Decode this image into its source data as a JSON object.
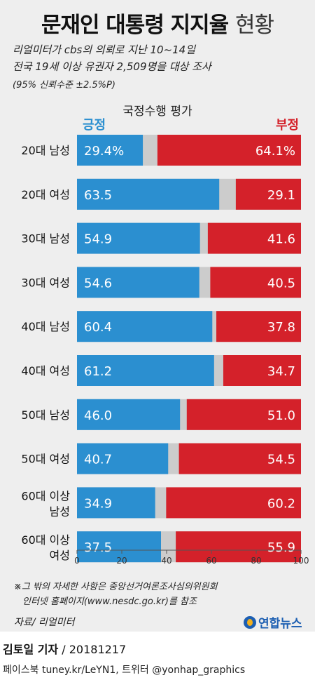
{
  "title": {
    "bold": "문재인 대통령 지지율",
    "light": "현황"
  },
  "subtitle": [
    "리얼미터가 cbs의 의뢰로 지난 10~14일",
    "전국 19세 이상 유권자 2,509명을 대상 조사",
    "(95% 신뢰수준 ±2.5%P)"
  ],
  "chart_heading": "국정수행 평가",
  "legend": {
    "positive": "긍정",
    "negative": "부정"
  },
  "footnote": [
    "※그 밖의 자세한 사항은 중앙선거여론조사심의위원회",
    "인터넷 홈페이지(www.nesdc.go.kr)를 참조"
  ],
  "source": "자료/ 리얼미터",
  "logo": "연합뉴스",
  "credit": {
    "name": "김토일 기자",
    "date": " / 20181217"
  },
  "social": "페이스북 tuney.kr/LeYN1, 트위터 @yonhap_graphics",
  "colors": {
    "positive": "#2b8fd0",
    "negative": "#d4212a",
    "other": "#cccccc"
  },
  "chart_data": {
    "type": "bar",
    "orientation": "horizontal-stacked",
    "categories": [
      [
        "20대 남성"
      ],
      [
        "20대 여성"
      ],
      [
        "30대 남성"
      ],
      [
        "30대 여성"
      ],
      [
        "40대 남성"
      ],
      [
        "40대 여성"
      ],
      [
        "50대 남성"
      ],
      [
        "50대 여성"
      ],
      [
        "60대 이상",
        "남성"
      ],
      [
        "60대 이상",
        "여성"
      ]
    ],
    "series": [
      {
        "name": "긍정",
        "values": [
          29.4,
          63.5,
          54.9,
          54.6,
          60.4,
          61.2,
          46.0,
          40.7,
          34.9,
          37.5
        ],
        "labels": [
          "29.4%",
          "63.5",
          "54.9",
          "54.6",
          "60.4",
          "61.2",
          "46.0",
          "40.7",
          "34.9",
          "37.5"
        ]
      },
      {
        "name": "부정",
        "values": [
          64.1,
          29.1,
          41.6,
          40.5,
          37.8,
          34.7,
          51.0,
          54.5,
          60.2,
          55.9
        ],
        "labels": [
          "64.1%",
          "29.1",
          "41.6",
          "40.5",
          "37.8",
          "34.7",
          "51.0",
          "54.5",
          "60.2",
          "55.9"
        ]
      }
    ],
    "xlim": [
      0,
      100
    ],
    "xticks": [
      "0",
      "20",
      "40",
      "60",
      "80",
      "100"
    ]
  }
}
